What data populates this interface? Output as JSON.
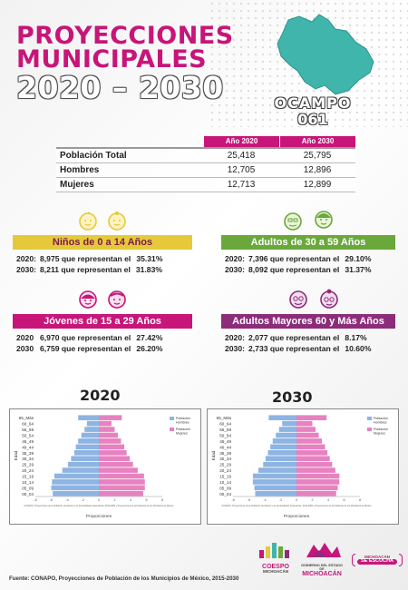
{
  "header": {
    "title_line1": "PROYECCIONES",
    "title_line2": "MUNICIPALES",
    "title_years": "2020 – 2030",
    "municipality": "OCAMPO",
    "code": "061"
  },
  "colors": {
    "magenta": "#c7157a",
    "teal": "#3fb5ac",
    "yellow": "#e6c93a",
    "green": "#6aa83c",
    "purple": "#8c2c7a",
    "men": "#8db4e2",
    "women": "#e682c0"
  },
  "table": {
    "headers": [
      "Año 2020",
      "Año 2030"
    ],
    "rows": [
      {
        "label": "Población Total",
        "v2020": "25,418",
        "v2030": "25,795"
      },
      {
        "label": "Hombres",
        "v2020": "12,705",
        "v2030": "12,896"
      },
      {
        "label": "Mujeres",
        "v2020": "12,713",
        "v2030": "12,899"
      }
    ]
  },
  "groups": {
    "ninos": {
      "title": "Niños de 0 a 14 Años",
      "rows": [
        {
          "year": "2020:",
          "text": "8,975 que representan el",
          "pct": "35.31%"
        },
        {
          "year": "2030:",
          "text": "8,211 que representan el",
          "pct": "31.83%"
        }
      ]
    },
    "adultos": {
      "title": "Adultos de 30 a 59 Años",
      "rows": [
        {
          "year": "2020:",
          "text": "7,396 que representan el",
          "pct": "29.10%"
        },
        {
          "year": "2030:",
          "text": "8,092 que representan el",
          "pct": "31.37%"
        }
      ]
    },
    "jovenes": {
      "title": "Jóvenes de 15 a 29 Años",
      "rows": [
        {
          "year": "2020",
          "text": "6,970 que representan el",
          "pct": "27.42%"
        },
        {
          "year": "2030",
          "text": "6,759 que representan el",
          "pct": "26.20%"
        }
      ]
    },
    "mayores": {
      "title": "Adultos Mayores  60 y Más Años",
      "rows": [
        {
          "year": "2020:",
          "text": "2,077 que representan el",
          "pct": "8.17%"
        },
        {
          "year": "2030:",
          "text": "2,733 que representan el",
          "pct": "10.60%"
        }
      ]
    }
  },
  "chart_data": [
    {
      "type": "bar",
      "title": "2020",
      "ylabel": "Edad",
      "xlabel": "Proporciones",
      "categories": [
        "00_04",
        "05_09",
        "10_14",
        "15_19",
        "20_24",
        "25_29",
        "30_34",
        "35_39",
        "40_44",
        "45_49",
        "50_54",
        "55_59",
        "60_64",
        "65_Más"
      ],
      "series": [
        {
          "name": "Población Hombres",
          "values": [
            -5.8,
            -6.0,
            -5.9,
            -5.6,
            -4.6,
            -3.9,
            -3.5,
            -3.1,
            -2.9,
            -2.6,
            -2.2,
            -1.8,
            -1.5,
            -2.6
          ]
        },
        {
          "name": "Población Mujeres",
          "values": [
            5.6,
            5.8,
            5.8,
            5.7,
            4.9,
            4.3,
            3.9,
            3.5,
            3.2,
            2.8,
            2.4,
            2.0,
            1.6,
            2.9
          ]
        }
      ],
      "xlim": [
        -8,
        8
      ],
      "legend": "top-right",
      "source": "CONAPO. Proyecciones de la Población de México y de las Entidades Federativas, 2016-2050 y Proyecciones de la Población de los Municipios de México"
    },
    {
      "type": "bar",
      "title": "2030",
      "ylabel": "Edad",
      "xlabel": "Proporciones",
      "categories": [
        "00_04",
        "05_09",
        "10_14",
        "15_19",
        "20_24",
        "25_29",
        "30_34",
        "35_39",
        "40_44",
        "45_49",
        "50_54",
        "55_59",
        "60_64",
        "65_Más"
      ],
      "series": [
        {
          "name": "Población Hombres",
          "values": [
            -5.2,
            -5.3,
            -5.5,
            -5.5,
            -4.8,
            -4.2,
            -3.9,
            -3.6,
            -3.3,
            -3.0,
            -2.6,
            -2.2,
            -1.8,
            -3.5
          ]
        },
        {
          "name": "Población Mujeres",
          "values": [
            5.0,
            5.2,
            5.4,
            5.4,
            4.9,
            4.5,
            4.2,
            3.9,
            3.6,
            3.2,
            2.8,
            2.4,
            2.0,
            3.8
          ]
        }
      ],
      "xlim": [
        -8,
        8
      ],
      "legend": "top-right",
      "source": "CONAPO. Proyecciones de la Población de México y de las Entidades Federativas, 2016-2050 y Proyecciones de la Población de los Municipios de México"
    }
  ],
  "footer": {
    "source": "Fuente: CONAPO, Proyecciones de Población de los Municipios de México, 2015-2030"
  },
  "logos": {
    "coespo_top": "COESPO",
    "coespo_bottom": "MICHOACÁN",
    "gobierno_top": "GOBIERNO DEL ESTADO DE",
    "gobierno_bottom": "MICHOACÁN",
    "escucha_top": "MICHOACÁN",
    "escucha_bottom": "SE ESCUCHA"
  }
}
